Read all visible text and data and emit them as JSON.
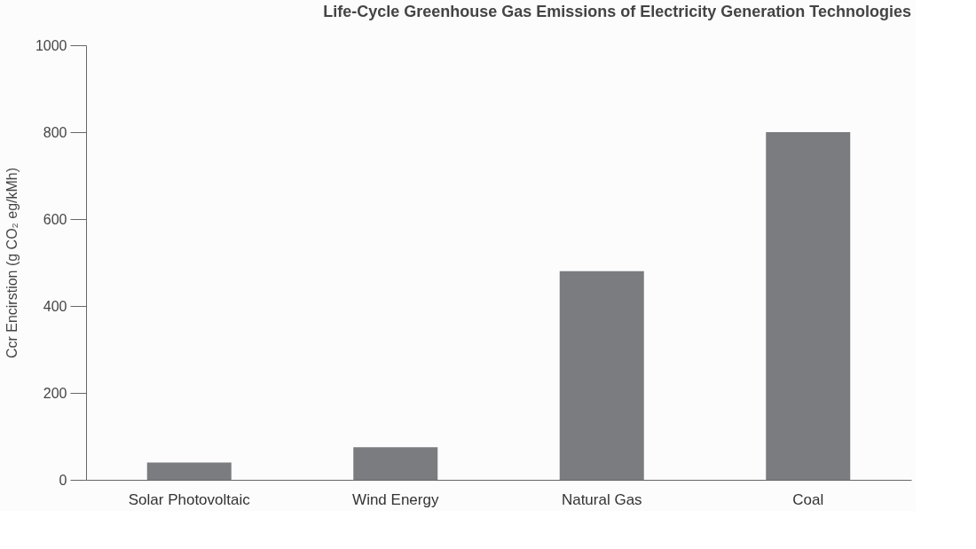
{
  "chart_data": {
    "type": "bar",
    "title": "Life-Cycle Greenhouse Gas Emissions of Electricity Generation Technologies",
    "ylabel": "Ccr Encirstion (g CO₂ eg/kMh)",
    "categories": [
      "Solar Photovoltaic",
      "Wind Energy",
      "Natural Gas",
      "Coal"
    ],
    "values": [
      40,
      75,
      480,
      800
    ],
    "color": "#7a7c80",
    "ylim": [
      0,
      1000
    ],
    "yticks": [
      0,
      200,
      400,
      600,
      800,
      1000
    ],
    "grid": false
  }
}
